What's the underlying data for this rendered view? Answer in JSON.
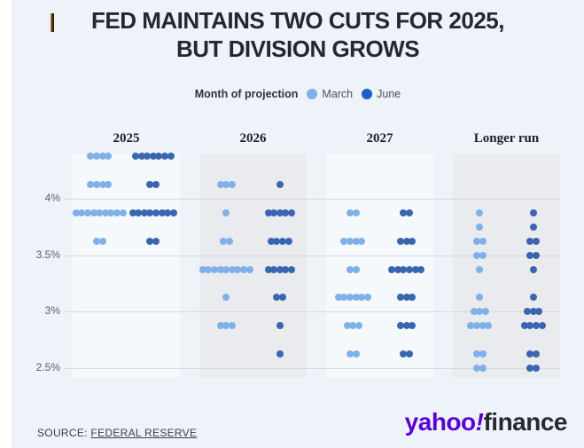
{
  "title": {
    "line1": "FED MAINTAINS TWO CUTS FOR 2025,",
    "line2": "BUT DIVISION GROWS"
  },
  "legend": {
    "label": "Month of projection",
    "items": [
      {
        "label": "March",
        "color": "#7fb1e8"
      },
      {
        "label": "June",
        "color": "#1d5fc4"
      }
    ]
  },
  "colors": {
    "background": "#eef3f9",
    "march_dot": "#7fb1e8",
    "june_dot": "#3a66b0",
    "panel_light": "#f6f9fc",
    "panel_gray": "#eaebee",
    "gridline": "#d6d8dc",
    "accent_purple": "#5b01d2",
    "logo_dark": "#232a31"
  },
  "chart_data": {
    "type": "scatter",
    "subtype": "fed-dot-plot",
    "series_names": [
      "March",
      "June"
    ],
    "y_ticks": [
      {
        "label": "4%",
        "value": 4.0
      },
      {
        "label": "3.5%",
        "value": 3.5
      },
      {
        "label": "3%",
        "value": 3.0
      },
      {
        "label": "2.5%",
        "value": 2.5
      }
    ],
    "y_domain": [
      2.41,
      4.39
    ],
    "grid": true,
    "legend_position": "top",
    "panels": [
      {
        "label": "2025",
        "shaded": false,
        "rows": [
          {
            "rate": 4.375,
            "march": 4,
            "june": 7
          },
          {
            "rate": 4.125,
            "march": 4,
            "june": 2
          },
          {
            "rate": 3.875,
            "march": 9,
            "june": 8
          },
          {
            "rate": 3.625,
            "march": 2,
            "june": 2
          }
        ]
      },
      {
        "label": "2026",
        "shaded": true,
        "rows": [
          {
            "rate": 4.125,
            "march": 3,
            "june": 1
          },
          {
            "rate": 3.875,
            "march": 1,
            "june": 5
          },
          {
            "rate": 3.625,
            "march": 2,
            "june": 4
          },
          {
            "rate": 3.375,
            "march": 9,
            "june": 5
          },
          {
            "rate": 3.125,
            "march": 1,
            "june": 2
          },
          {
            "rate": 2.875,
            "march": 3,
            "june": 1
          },
          {
            "rate": 2.625,
            "march": 0,
            "june": 1
          }
        ]
      },
      {
        "label": "2027",
        "shaded": false,
        "rows": [
          {
            "rate": 3.875,
            "march": 2,
            "june": 2
          },
          {
            "rate": 3.625,
            "march": 4,
            "june": 3
          },
          {
            "rate": 3.375,
            "march": 2,
            "june": 6
          },
          {
            "rate": 3.125,
            "march": 6,
            "june": 3
          },
          {
            "rate": 2.875,
            "march": 3,
            "june": 3
          },
          {
            "rate": 2.625,
            "march": 2,
            "june": 2
          }
        ]
      },
      {
        "label": "Longer run",
        "shaded": true,
        "rows": [
          {
            "rate": 3.875,
            "march": 1,
            "june": 1
          },
          {
            "rate": 3.75,
            "march": 1,
            "june": 1
          },
          {
            "rate": 3.625,
            "march": 2,
            "june": 2
          },
          {
            "rate": 3.5,
            "march": 2,
            "june": 2
          },
          {
            "rate": 3.375,
            "march": 1,
            "june": 1
          },
          {
            "rate": 3.125,
            "march": 1,
            "june": 1
          },
          {
            "rate": 3.0,
            "march": 3,
            "june": 3
          },
          {
            "rate": 2.875,
            "march": 4,
            "june": 4
          },
          {
            "rate": 2.625,
            "march": 2,
            "june": 2
          },
          {
            "rate": 2.5,
            "march": 2,
            "june": 2
          }
        ]
      }
    ]
  },
  "source": {
    "prefix": "SOURCE: ",
    "link": "FEDERAL RESERVE"
  },
  "logo": {
    "brand": "yahoo",
    "exclaim": "!",
    "suffix": "finance"
  }
}
